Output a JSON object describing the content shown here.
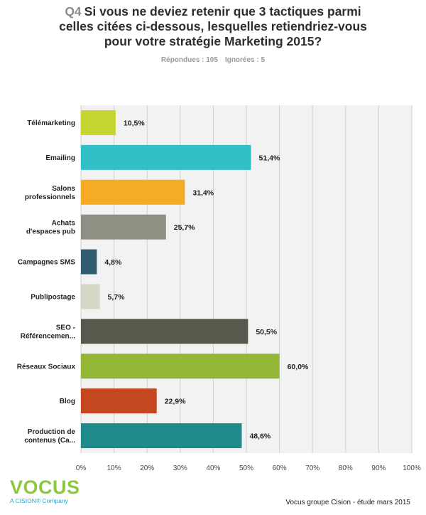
{
  "header": {
    "question_number": "Q4",
    "title": "Si vous ne deviez retenir que 3 tactiques parmi celles citées ci-dessous, lesquelles retiendriez-vous pour votre stratégie Marketing 2015?",
    "answered": "Répondues : 105",
    "skipped": "Ignorées : 5"
  },
  "chart_data": {
    "type": "bar",
    "orientation": "horizontal",
    "categories": [
      "Télémarketing",
      "Emailing",
      "Salons professionnels",
      "Achats d'espaces pub",
      "Campagnes SMS",
      "Publipostage",
      "SEO - Référencemen...",
      "Réseaux Sociaux",
      "Blog",
      "Production de contenus (Ca..."
    ],
    "category_lines": [
      [
        "Télémarketing"
      ],
      [
        "Emailing"
      ],
      [
        "Salons",
        "professionnels"
      ],
      [
        "Achats",
        "d'espaces pub"
      ],
      [
        "Campagnes SMS"
      ],
      [
        "Publipostage"
      ],
      [
        "SEO -",
        "Référencemen..."
      ],
      [
        "Réseaux Sociaux"
      ],
      [
        "Blog"
      ],
      [
        "Production de",
        "contenus (Ca..."
      ]
    ],
    "values": [
      10.5,
      51.4,
      31.4,
      25.7,
      4.8,
      5.7,
      50.5,
      60.0,
      22.9,
      48.6
    ],
    "value_labels": [
      "10,5%",
      "51,4%",
      "31,4%",
      "25,7%",
      "4,8%",
      "5,7%",
      "50,5%",
      "60,0%",
      "22,9%",
      "48,6%"
    ],
    "colors": [
      "#c5d531",
      "#33bfc7",
      "#f6ab26",
      "#8f8f83",
      "#2f5c6e",
      "#d6d6c6",
      "#59584c",
      "#94b636",
      "#c4471f",
      "#1f8a8c"
    ],
    "xlim": [
      0,
      100
    ],
    "xticks": [
      "0%",
      "10%",
      "20%",
      "30%",
      "40%",
      "50%",
      "60%",
      "70%",
      "80%",
      "90%",
      "100%"
    ],
    "grid": true,
    "background": "#f2f2f2"
  },
  "footer": {
    "logo": "VOCUS",
    "logo_tagline": "A CISION® Company",
    "source": "Vocus groupe Cision - étude mars 2015"
  }
}
